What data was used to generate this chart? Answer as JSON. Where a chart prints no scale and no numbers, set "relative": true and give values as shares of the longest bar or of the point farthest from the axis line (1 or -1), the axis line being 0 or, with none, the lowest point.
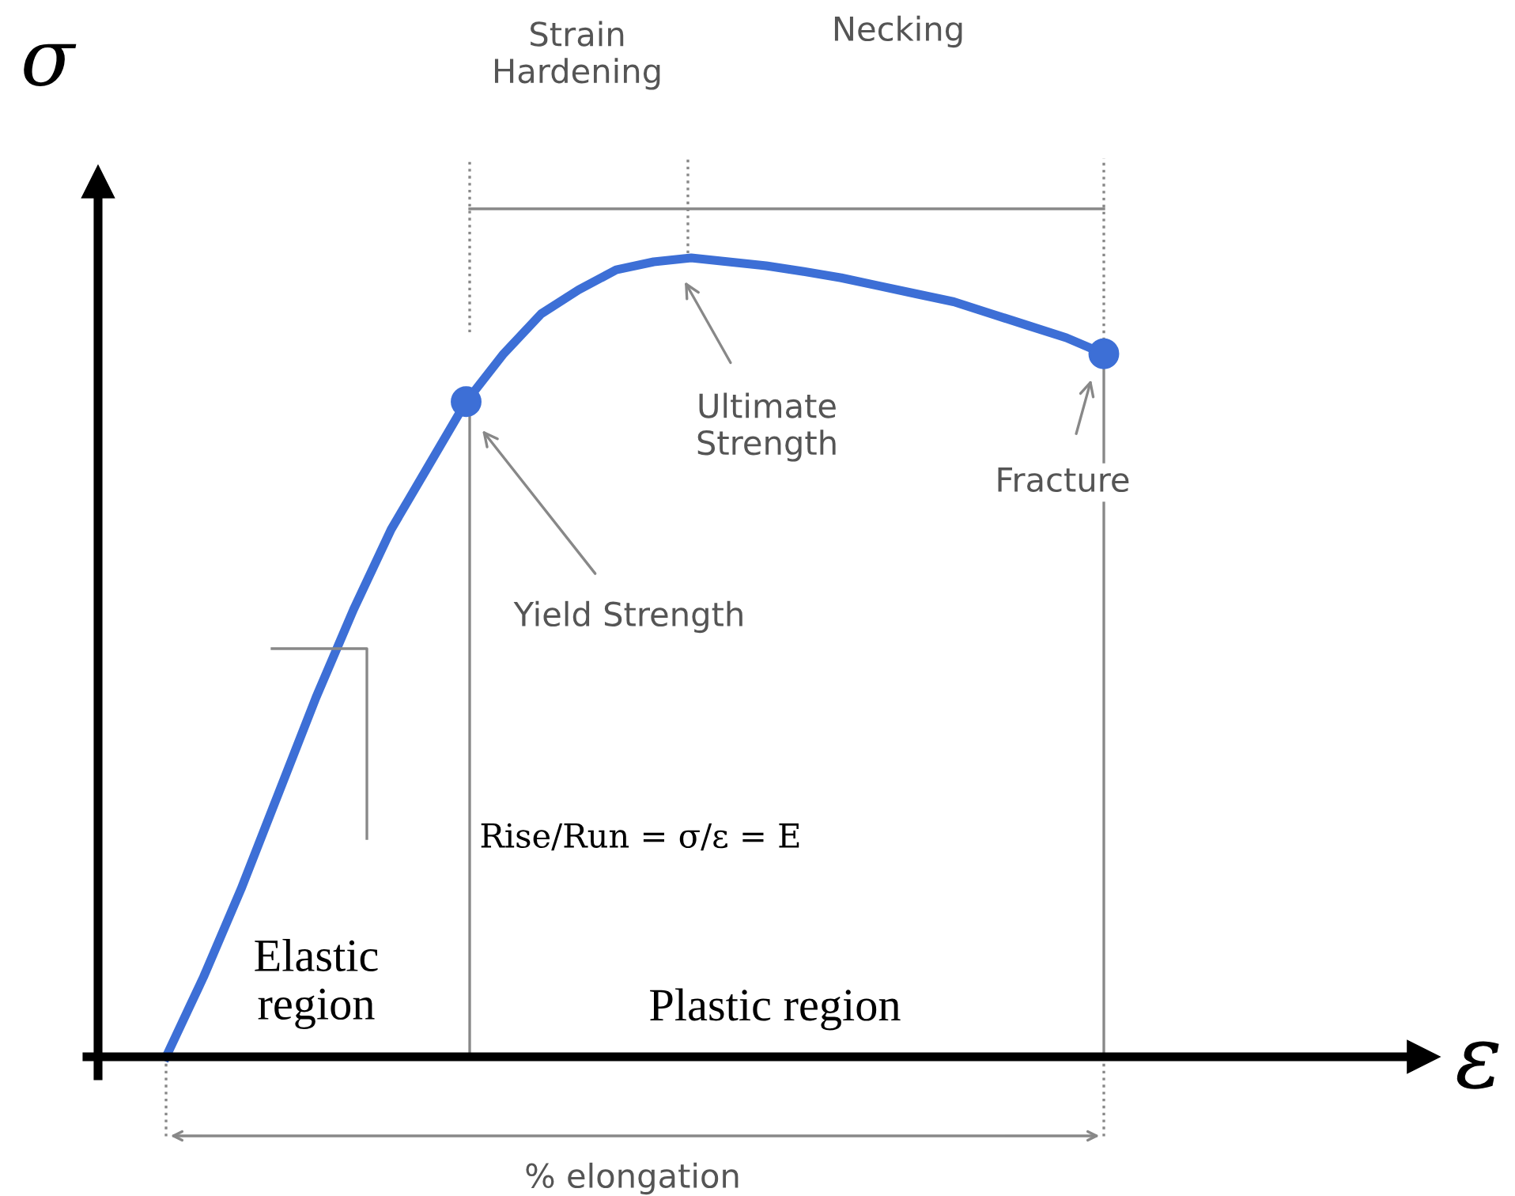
{
  "chart_data": {
    "type": "line",
    "relative": true,
    "xlabel": "ε",
    "ylabel": "σ",
    "categories": [
      null,
      null,
      null,
      null,
      null,
      null,
      null,
      null,
      null,
      null,
      null,
      null,
      null,
      null,
      null,
      null,
      null,
      null,
      null,
      null,
      null,
      null,
      null,
      null,
      null,
      null
    ],
    "series": [
      {
        "color": "#3d6fd6",
        "values": [
          0,
          0.1,
          0.21,
          0.33,
          0.45,
          0.56,
          0.66,
          0.74,
          0.82,
          0.88,
          0.93,
          0.96,
          0.985,
          0.995,
          1.0,
          0.995,
          0.99,
          0.983,
          0.975,
          0.965,
          0.955,
          0.945,
          0.93,
          0.915,
          0.9,
          0.88
        ]
      }
    ],
    "annotations": [
      "Yield Strength",
      "Ultimate\nStrength",
      "Fracture",
      "Strain\nHardening",
      "Necking",
      "Rise/Run = σ/ε = E",
      "Elastic\nregion",
      "Plastic region",
      "% elongation"
    ],
    "grid": false,
    "legend": false
  }
}
